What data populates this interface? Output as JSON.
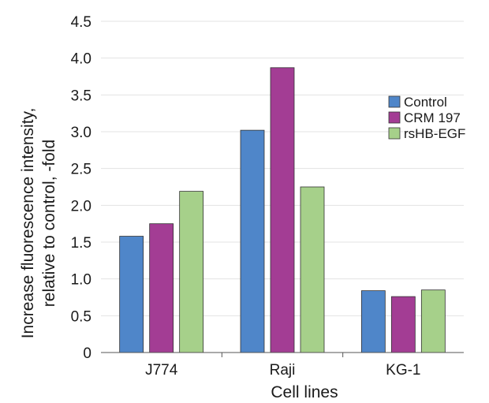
{
  "chart_data": {
    "type": "bar",
    "title": "",
    "xlabel": "Cell lines",
    "ylabel_lines": [
      "Increase fluorescence intensity,",
      "relative to control, -fold"
    ],
    "categories": [
      "J774",
      "Raji",
      "KG-1"
    ],
    "series": [
      {
        "name": "Control",
        "color": "#4f86c9",
        "values": [
          1.58,
          3.02,
          0.84
        ]
      },
      {
        "name": "CRM 197",
        "color": "#a33d94",
        "values": [
          1.75,
          3.87,
          0.76
        ]
      },
      {
        "name": "rsHB-EGF",
        "color": "#a6d08a",
        "values": [
          2.19,
          2.25,
          0.85
        ]
      }
    ],
    "ylim": [
      0,
      4.5
    ],
    "yticks": [
      "0",
      "0.5",
      "1.0",
      "1.5",
      "2.0",
      "2.5",
      "3.0",
      "3.5",
      "4.0",
      "4.5"
    ],
    "grid": true,
    "legend_position": "right"
  }
}
